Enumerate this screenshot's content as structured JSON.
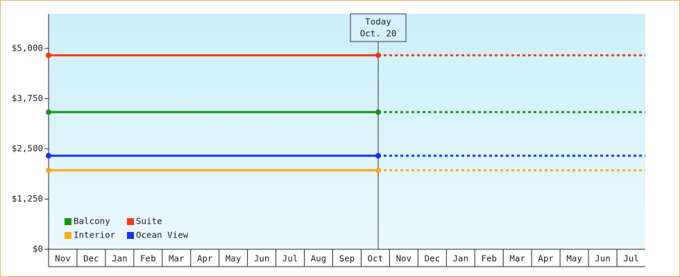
{
  "chart_data": {
    "type": "line",
    "categories": [
      "Nov",
      "Dec",
      "Jan",
      "Feb",
      "Mar",
      "Apr",
      "May",
      "Jun",
      "Jul",
      "Aug",
      "Sep",
      "Oct",
      "Nov",
      "Dec",
      "Jan",
      "Feb",
      "Mar",
      "Apr",
      "May",
      "Jun",
      "Jul"
    ],
    "ylim": [
      0,
      5860
    ],
    "yticks": [
      {
        "value": 0,
        "label": "$0"
      },
      {
        "value": 1250,
        "label": "$1,250"
      },
      {
        "value": 2500,
        "label": "$2,500"
      },
      {
        "value": 3750,
        "label": "$3,750"
      },
      {
        "value": 5000,
        "label": "$5,000"
      }
    ],
    "annotation": {
      "title": "Today",
      "date": "Oct. 20"
    },
    "legend": "bottom-left",
    "series": [
      {
        "name": "Balcony",
        "color": "#119911",
        "value": 3414
      },
      {
        "name": "Suite",
        "color": "#ff3311",
        "value": 4828
      },
      {
        "name": "Interior",
        "color": "#ffa811",
        "value": 1966
      },
      {
        "name": "Ocean View",
        "color": "#1133ff",
        "value": 2328
      }
    ]
  }
}
